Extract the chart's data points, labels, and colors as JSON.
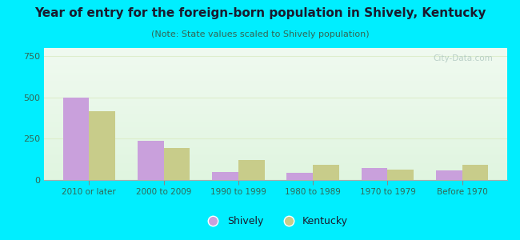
{
  "categories": [
    "2010 or later",
    "2000 to 2009",
    "1990 to 1999",
    "1980 to 1989",
    "1970 to 1979",
    "Before 1970"
  ],
  "shively_values": [
    500,
    240,
    50,
    45,
    75,
    60
  ],
  "kentucky_values": [
    415,
    195,
    120,
    90,
    65,
    90
  ],
  "shively_color": "#c9a0dc",
  "kentucky_color": "#c8cc8a",
  "title": "Year of entry for the foreign-born population in Shively, Kentucky",
  "subtitle": "(Note: State values scaled to Shively population)",
  "title_fontsize": 11,
  "subtitle_fontsize": 8,
  "ylabel_values": [
    0,
    250,
    500,
    750
  ],
  "ylim": [
    0,
    800
  ],
  "background_outer": "#00eeff",
  "background_plot": "#eef8ee",
  "bar_width": 0.35,
  "legend_shively": "Shively",
  "legend_kentucky": "Kentucky",
  "title_color": "#1a1a2e",
  "subtitle_color": "#336655",
  "tick_color": "#336655",
  "watermark_color": "#b0c8c0"
}
